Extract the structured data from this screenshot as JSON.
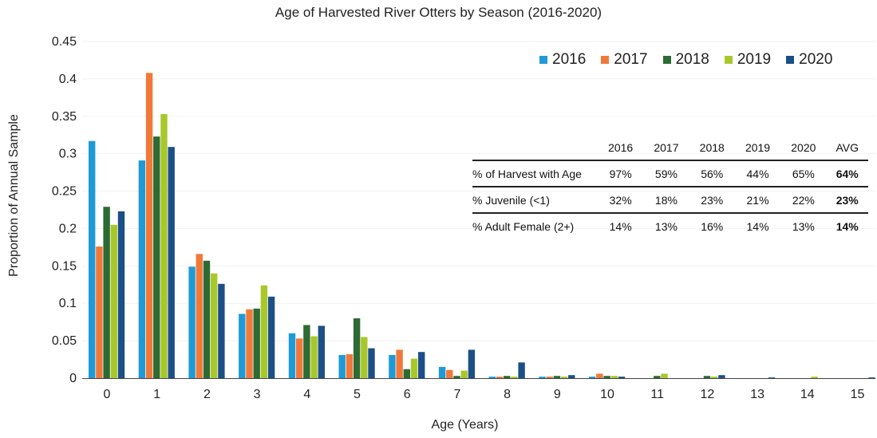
{
  "chart_data": {
    "type": "bar",
    "title": "Age of Harvested River Otters by Season (2016-2020)",
    "xlabel": "Age (Years)",
    "ylabel": "Proportion of Annual Sample",
    "categories": [
      "0",
      "1",
      "2",
      "3",
      "4",
      "5",
      "6",
      "7",
      "8",
      "9",
      "10",
      "11",
      "12",
      "13",
      "14",
      "15"
    ],
    "ylim": [
      0,
      0.45
    ],
    "yticks": [
      "0",
      "0.05",
      "0.1",
      "0.15",
      "0.2",
      "0.25",
      "0.3",
      "0.35",
      "0.4",
      "0.45"
    ],
    "legend_position": "top-right",
    "grid": true,
    "series": [
      {
        "name": "2016",
        "color": "#1f9ad6",
        "values": [
          0.317,
          0.291,
          0.149,
          0.086,
          0.06,
          0.031,
          0.031,
          0.015,
          0.002,
          0.002,
          0.002,
          0.0,
          0.0,
          0.0,
          0.0,
          0.0
        ]
      },
      {
        "name": "2017",
        "color": "#f0793a",
        "values": [
          0.176,
          0.408,
          0.166,
          0.092,
          0.053,
          0.032,
          0.038,
          0.011,
          0.002,
          0.002,
          0.006,
          0.0,
          0.0,
          0.0,
          0.0,
          0.0
        ]
      },
      {
        "name": "2018",
        "color": "#2d6a34",
        "values": [
          0.229,
          0.323,
          0.157,
          0.093,
          0.071,
          0.08,
          0.012,
          0.003,
          0.003,
          0.003,
          0.003,
          0.003,
          0.003,
          0.0,
          0.0,
          0.0
        ]
      },
      {
        "name": "2019",
        "color": "#a8c82a",
        "values": [
          0.205,
          0.353,
          0.14,
          0.124,
          0.056,
          0.055,
          0.026,
          0.01,
          0.002,
          0.002,
          0.003,
          0.006,
          0.002,
          0.0,
          0.002,
          0.0
        ]
      },
      {
        "name": "2020",
        "color": "#1c4f86",
        "values": [
          0.223,
          0.309,
          0.126,
          0.109,
          0.07,
          0.04,
          0.035,
          0.038,
          0.021,
          0.004,
          0.002,
          0.0,
          0.004,
          0.001,
          0.0,
          0.001
        ]
      }
    ]
  },
  "table": {
    "headers": [
      "",
      "2016",
      "2017",
      "2018",
      "2019",
      "2020",
      "AVG"
    ],
    "rows": [
      {
        "label": "% of Harvest with Age",
        "values": [
          "97%",
          "59%",
          "56%",
          "44%",
          "65%"
        ],
        "avg": "64%"
      },
      {
        "label": "% Juvenile (<1)",
        "values": [
          "32%",
          "18%",
          "23%",
          "21%",
          "22%"
        ],
        "avg": "23%"
      },
      {
        "label": "% Adult Female (2+)",
        "values": [
          "14%",
          "13%",
          "16%",
          "14%",
          "13%"
        ],
        "avg": "14%"
      }
    ]
  }
}
